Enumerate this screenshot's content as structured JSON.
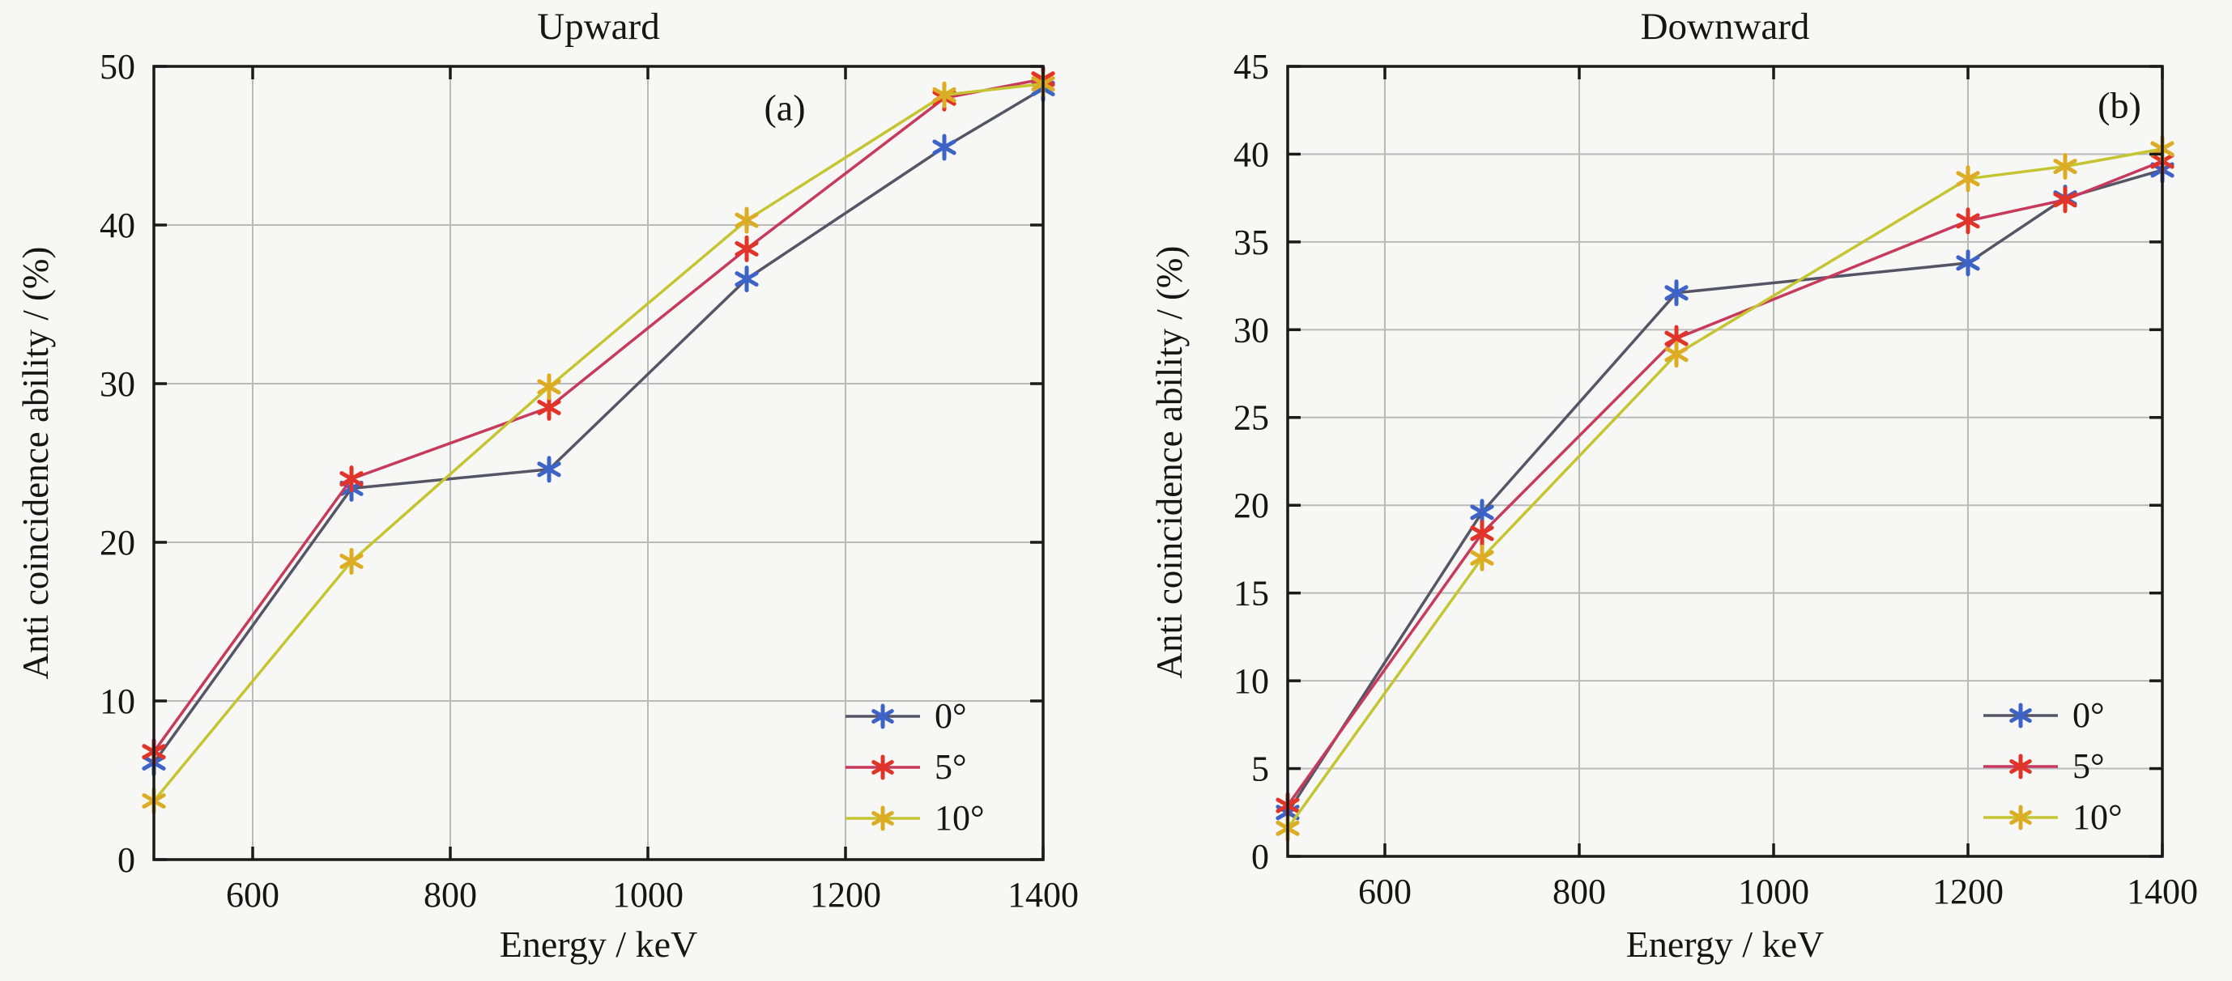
{
  "figure": {
    "bg_color": "#f7f7f5",
    "axis_color": "#1a1a1a",
    "grid_color": "#bababa",
    "text_color": "#151515",
    "tick_font_size": 44,
    "series_styles": [
      {
        "name": "0°",
        "line_color": "#555566",
        "marker_color": "#3e63c7"
      },
      {
        "name": "5°",
        "line_color": "#c73a5c",
        "marker_color": "#e13428"
      },
      {
        "name": "10°",
        "line_color": "#c5c431",
        "marker_color": "#dcad24"
      }
    ]
  },
  "chart_data": [
    {
      "type": "line",
      "panel": "a",
      "title": "Upward",
      "annotation": "(a)",
      "xlabel": "Energy / keV",
      "ylabel": "Anti coincidence ability / (%)",
      "xlim": [
        500,
        1400
      ],
      "ylim": [
        0,
        50
      ],
      "x_ticks": [
        600,
        800,
        1000,
        1200,
        1400
      ],
      "y_ticks": [
        0,
        10,
        20,
        30,
        40,
        50
      ],
      "grid": true,
      "legend_position": "lower right",
      "x": [
        500,
        700,
        900,
        1100,
        1300,
        1400
      ],
      "series": [
        {
          "name": "0°",
          "values": [
            6.1,
            23.4,
            24.6,
            36.6,
            44.9,
            48.6
          ]
        },
        {
          "name": "5°",
          "values": [
            6.8,
            24.0,
            28.5,
            38.5,
            48.0,
            49.2
          ]
        },
        {
          "name": "10°",
          "values": [
            3.7,
            18.8,
            29.8,
            40.3,
            48.2,
            48.9
          ]
        }
      ]
    },
    {
      "type": "line",
      "panel": "b",
      "title": "Downward",
      "annotation": "(b)",
      "xlabel": "Energy / keV",
      "ylabel": "Anti coincidence ability / (%)",
      "xlim": [
        500,
        1400
      ],
      "ylim": [
        0,
        45
      ],
      "x_ticks": [
        600,
        800,
        1000,
        1200,
        1400
      ],
      "y_ticks": [
        0,
        5,
        10,
        15,
        20,
        25,
        30,
        35,
        40,
        45
      ],
      "grid": true,
      "legend_position": "lower right",
      "x": [
        500,
        700,
        900,
        1200,
        1300,
        1400
      ],
      "series": [
        {
          "name": "0°",
          "values": [
            2.5,
            19.6,
            32.1,
            33.8,
            37.5,
            39.1
          ]
        },
        {
          "name": "5°",
          "values": [
            2.9,
            18.4,
            29.5,
            36.2,
            37.4,
            39.6
          ]
        },
        {
          "name": "10°",
          "values": [
            1.6,
            17.0,
            28.6,
            38.6,
            39.3,
            40.3
          ]
        }
      ]
    }
  ]
}
